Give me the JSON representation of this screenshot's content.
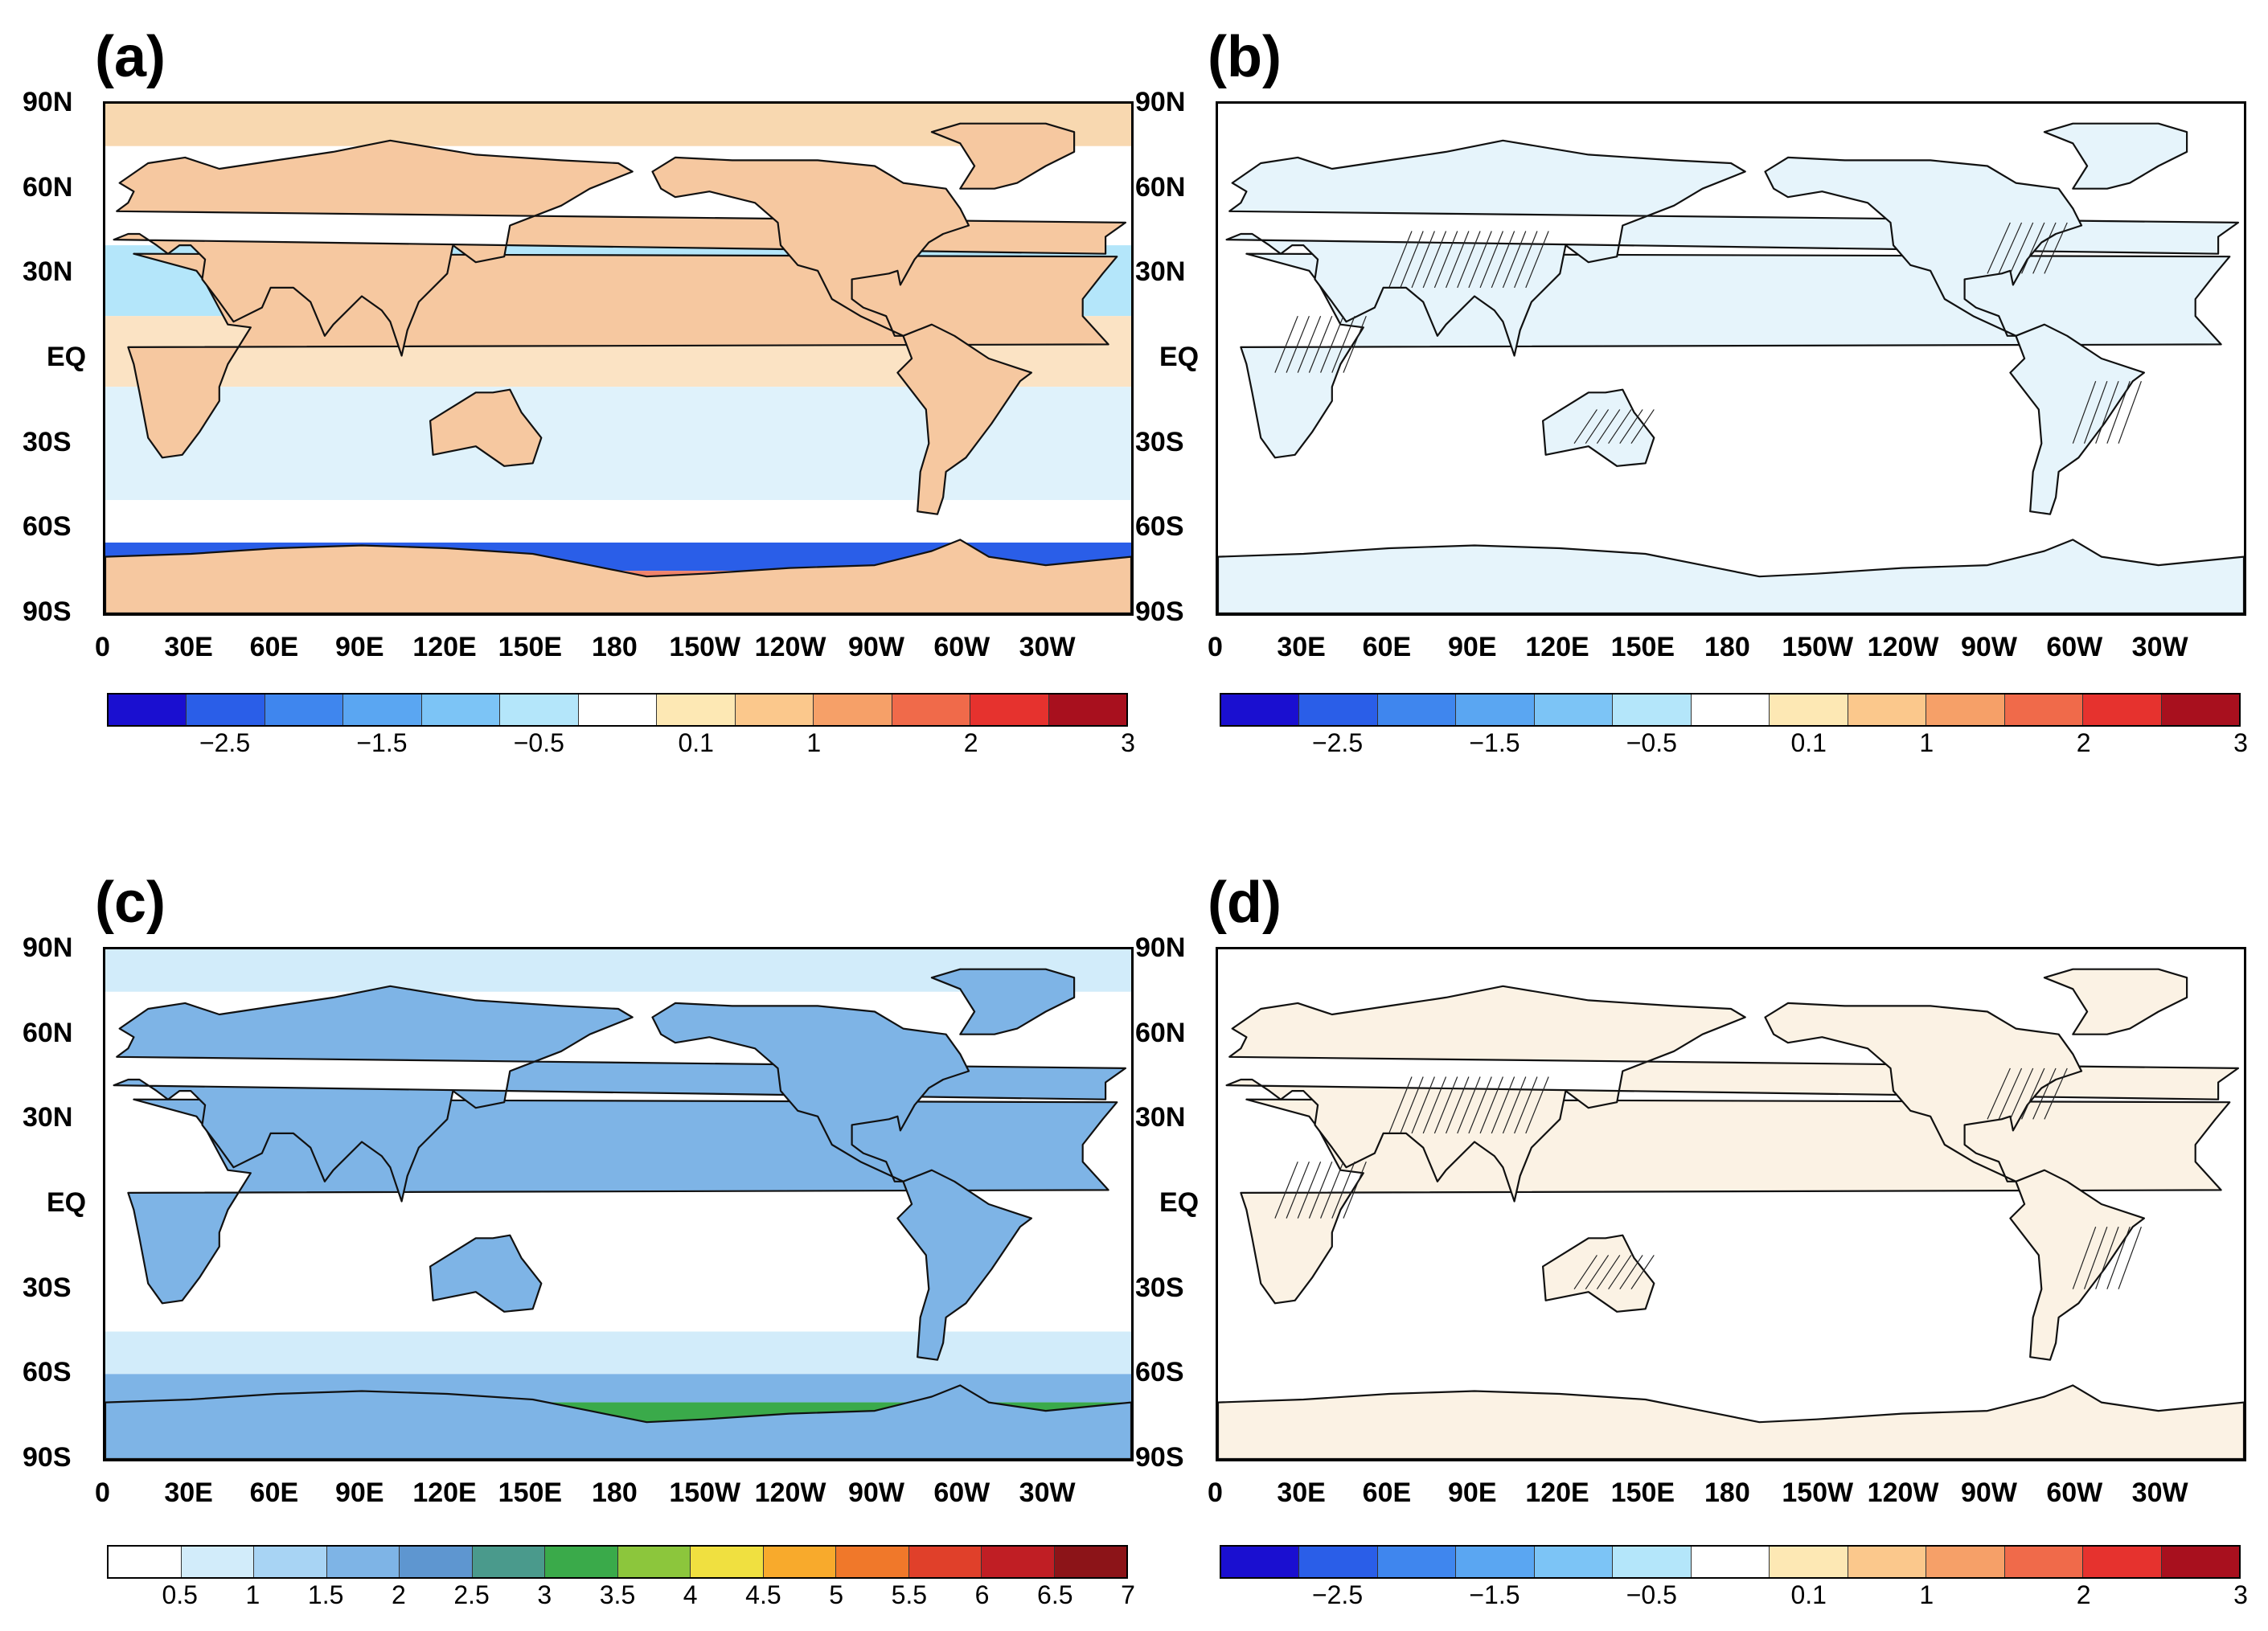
{
  "chart_data": [
    {
      "type": "heatmap",
      "panel": "(a)",
      "projection": "global lat-lon map",
      "lat_ticks": [
        "90N",
        "60N",
        "30N",
        "EQ",
        "30S",
        "60S",
        "90S"
      ],
      "lon_ticks": [
        "0",
        "30E",
        "60E",
        "90E",
        "120E",
        "150E",
        "180",
        "150W",
        "120W",
        "90W",
        "60W",
        "30W"
      ],
      "colorbar": {
        "colors": [
          "#1a0fd0",
          "#2a5ee8",
          "#3f86ee",
          "#5aa6f2",
          "#7cc4f6",
          "#b4e6fa",
          "#ffffff",
          "#fde8b4",
          "#fbc88c",
          "#f6a068",
          "#f06a4a",
          "#e6322e",
          "#a8101e"
        ],
        "labels": [
          "−2.5",
          "−1.5",
          "−0.5",
          "0.1",
          "1",
          "2",
          "3"
        ],
        "label_box_index": [
          1.5,
          3.5,
          5.5,
          7.5,
          9,
          11,
          13
        ]
      },
      "hatching": false
    },
    {
      "type": "heatmap",
      "panel": "(b)",
      "projection": "global lat-lon map",
      "lat_ticks": [
        "90N",
        "60N",
        "30N",
        "EQ",
        "30S",
        "60S",
        "90S"
      ],
      "lon_ticks": [
        "0",
        "30E",
        "60E",
        "90E",
        "120E",
        "150E",
        "180",
        "150W",
        "120W",
        "90W",
        "60W",
        "30W"
      ],
      "colorbar": {
        "colors": [
          "#1a0fd0",
          "#2a5ee8",
          "#3f86ee",
          "#5aa6f2",
          "#7cc4f6",
          "#b4e6fa",
          "#ffffff",
          "#fde8b4",
          "#fbc88c",
          "#f6a068",
          "#f06a4a",
          "#e6322e",
          "#a8101e"
        ],
        "labels": [
          "−2.5",
          "−1.5",
          "−0.5",
          "0.1",
          "1",
          "2",
          "3"
        ],
        "label_box_index": [
          1.5,
          3.5,
          5.5,
          7.5,
          9,
          11,
          13
        ]
      },
      "hatching": true
    },
    {
      "type": "heatmap",
      "panel": "(c)",
      "projection": "global lat-lon map",
      "lat_ticks": [
        "90N",
        "60N",
        "30N",
        "EQ",
        "30S",
        "60S",
        "90S"
      ],
      "lon_ticks": [
        "0",
        "30E",
        "60E",
        "90E",
        "120E",
        "150E",
        "180",
        "150W",
        "120W",
        "90W",
        "60W",
        "30W"
      ],
      "colorbar": {
        "colors": [
          "#ffffff",
          "#d2ecfa",
          "#a8d4f4",
          "#7eb4e6",
          "#5e96d0",
          "#4a9a8c",
          "#3aaa4a",
          "#8cc63c",
          "#f0e040",
          "#f8aa2c",
          "#f0782a",
          "#e0402a",
          "#c01e24",
          "#8c1418"
        ],
        "labels": [
          "0.5",
          "1",
          "1.5",
          "2",
          "2.5",
          "3",
          "3.5",
          "4",
          "4.5",
          "5",
          "5.5",
          "6",
          "6.5",
          "7"
        ],
        "label_box_index": [
          1,
          2,
          3,
          4,
          5,
          6,
          7,
          8,
          9,
          10,
          11,
          12,
          13,
          14
        ]
      },
      "hatching": false
    },
    {
      "type": "heatmap",
      "panel": "(d)",
      "projection": "global lat-lon map",
      "lat_ticks": [
        "90N",
        "60N",
        "30N",
        "EQ",
        "30S",
        "60S",
        "90S"
      ],
      "lon_ticks": [
        "0",
        "30E",
        "60E",
        "90E",
        "120E",
        "150E",
        "180",
        "150W",
        "120W",
        "90W",
        "60W",
        "30W"
      ],
      "colorbar": {
        "colors": [
          "#1a0fd0",
          "#2a5ee8",
          "#3f86ee",
          "#5aa6f2",
          "#7cc4f6",
          "#b4e6fa",
          "#ffffff",
          "#fde8b4",
          "#fbc88c",
          "#f6a068",
          "#f06a4a",
          "#e6322e",
          "#a8101e"
        ],
        "labels": [
          "−2.5",
          "−1.5",
          "−0.5",
          "0.1",
          "1",
          "2",
          "3"
        ],
        "label_box_index": [
          1.5,
          3.5,
          5.5,
          7.5,
          9,
          11,
          13
        ]
      },
      "hatching": true
    }
  ]
}
